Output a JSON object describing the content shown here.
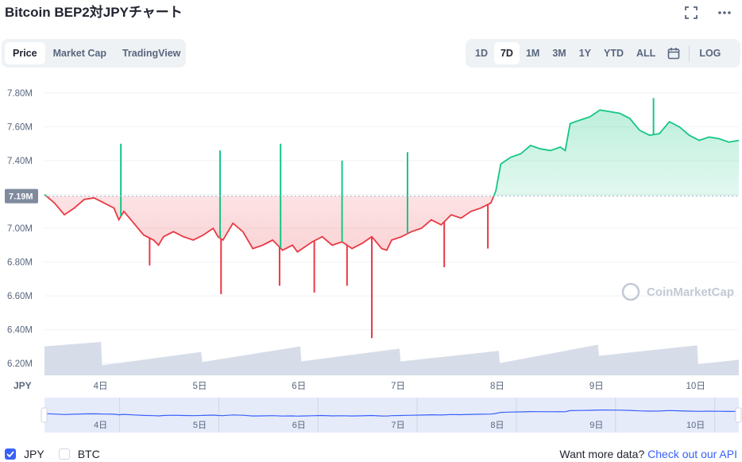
{
  "page": {
    "title": "Bitcoin BEP2対JPYチャート"
  },
  "header_icons": {
    "expand": "expand-icon",
    "more": "more-icon"
  },
  "type_tabs": [
    {
      "label": "Price",
      "active": true
    },
    {
      "label": "Market Cap",
      "active": false
    },
    {
      "label": "TradingView",
      "active": false
    }
  ],
  "range_tabs": [
    {
      "label": "1D",
      "active": false
    },
    {
      "label": "7D",
      "active": true
    },
    {
      "label": "1M",
      "active": false
    },
    {
      "label": "3M",
      "active": false
    },
    {
      "label": "1Y",
      "active": false
    },
    {
      "label": "YTD",
      "active": false
    },
    {
      "label": "ALL",
      "active": false
    }
  ],
  "calendar_icon": "calendar-icon",
  "log_label": "LOG",
  "footer": {
    "currencies": [
      {
        "label": "JPY",
        "checked": true
      },
      {
        "label": "BTC",
        "checked": false
      }
    ],
    "more_text": "Want more data?",
    "api_link": "Check out our API"
  },
  "colors": {
    "up": "#16c784",
    "down": "#ea3943",
    "volume": "#cfd6e4",
    "navigator_line": "#3861fb",
    "accent": "#3861fb"
  },
  "chart_data": {
    "type": "line",
    "currency_label": "JPY",
    "y_ticks": [
      "7.80M",
      "7.60M",
      "7.40M",
      "7.20M",
      "7.00M",
      "6.80M",
      "6.60M",
      "6.40M",
      "6.20M"
    ],
    "y_tick_values": [
      7.8,
      7.6,
      7.4,
      7.2,
      7.0,
      6.8,
      6.6,
      6.4,
      6.2
    ],
    "ylim": [
      6.13,
      7.88
    ],
    "y_unit": "M JPY",
    "x_ticks": [
      "4日",
      "5日",
      "6日",
      "7日",
      "8日",
      "9日",
      "10日"
    ],
    "x_tick_values": [
      0.565,
      1.565,
      2.565,
      3.565,
      4.565,
      5.565,
      6.565
    ],
    "xlim": [
      0,
      7
    ],
    "baseline": 7.19,
    "baseline_label": "7.19M",
    "watermark": "CoinMarketCap",
    "grid": true,
    "series": [
      {
        "x": [
          0,
          0.1,
          0.2,
          0.3,
          0.4,
          0.5,
          0.6,
          0.7,
          0.75,
          0.8,
          0.9,
          1.0,
          1.1,
          1.15,
          1.2,
          1.3,
          1.4,
          1.5,
          1.6,
          1.7,
          1.75,
          1.8,
          1.9,
          2.0,
          2.1,
          2.2,
          2.3,
          2.4,
          2.5,
          2.55,
          2.6,
          2.7,
          2.8,
          2.9,
          3.0,
          3.1,
          3.2,
          3.3,
          3.4,
          3.45,
          3.5,
          3.6,
          3.7,
          3.8,
          3.9,
          4.0,
          4.1,
          4.2,
          4.3,
          4.4,
          4.5,
          4.55,
          4.6,
          4.7,
          4.8,
          4.9,
          5.0,
          5.1,
          5.2,
          5.25,
          5.3,
          5.4,
          5.5,
          5.6,
          5.7,
          5.8,
          5.9,
          6.0,
          6.1,
          6.2,
          6.3,
          6.4,
          6.5,
          6.6,
          6.7,
          6.8,
          6.9,
          7.0
        ],
        "y": [
          7.2,
          7.15,
          7.08,
          7.12,
          7.17,
          7.18,
          7.15,
          7.12,
          7.05,
          7.1,
          7.03,
          6.96,
          6.93,
          6.9,
          6.95,
          6.98,
          6.95,
          6.93,
          6.96,
          7.0,
          6.95,
          6.93,
          7.03,
          6.98,
          6.88,
          6.9,
          6.93,
          6.87,
          6.9,
          6.86,
          6.88,
          6.92,
          6.95,
          6.9,
          6.92,
          6.88,
          6.91,
          6.95,
          6.88,
          6.87,
          6.93,
          6.95,
          6.98,
          7.0,
          7.05,
          7.02,
          7.08,
          7.06,
          7.1,
          7.12,
          7.15,
          7.22,
          7.38,
          7.42,
          7.44,
          7.49,
          7.47,
          7.46,
          7.48,
          7.46,
          7.62,
          7.64,
          7.66,
          7.7,
          7.69,
          7.68,
          7.65,
          7.58,
          7.55,
          7.56,
          7.63,
          7.6,
          7.55,
          7.52,
          7.54,
          7.53,
          7.51,
          7.52
        ]
      }
    ],
    "spikes": [
      {
        "x": 0.77,
        "y": 7.5
      },
      {
        "x": 1.06,
        "y": 6.78
      },
      {
        "x": 1.77,
        "y": 7.46
      },
      {
        "x": 1.78,
        "y": 6.61
      },
      {
        "x": 2.38,
        "y": 7.5
      },
      {
        "x": 2.37,
        "y": 6.66
      },
      {
        "x": 2.72,
        "y": 6.62
      },
      {
        "x": 3.0,
        "y": 7.4
      },
      {
        "x": 3.05,
        "y": 6.66
      },
      {
        "x": 3.3,
        "y": 6.35
      },
      {
        "x": 3.66,
        "y": 7.45
      },
      {
        "x": 4.03,
        "y": 6.77
      },
      {
        "x": 4.47,
        "y": 6.88
      },
      {
        "x": 6.14,
        "y": 7.77
      }
    ],
    "volume": [
      {
        "x": 0.0,
        "y": 0.52
      },
      {
        "x": 0.57,
        "y": 0.6
      },
      {
        "x": 0.58,
        "y": 0.18
      },
      {
        "x": 1.58,
        "y": 0.42
      },
      {
        "x": 1.59,
        "y": 0.24
      },
      {
        "x": 2.58,
        "y": 0.52
      },
      {
        "x": 2.59,
        "y": 0.25
      },
      {
        "x": 3.58,
        "y": 0.48
      },
      {
        "x": 3.59,
        "y": 0.25
      },
      {
        "x": 4.58,
        "y": 0.44
      },
      {
        "x": 4.59,
        "y": 0.22
      },
      {
        "x": 5.58,
        "y": 0.55
      },
      {
        "x": 5.59,
        "y": 0.35
      },
      {
        "x": 6.58,
        "y": 0.54
      },
      {
        "x": 6.59,
        "y": 0.2
      },
      {
        "x": 7.0,
        "y": 0.28
      }
    ]
  }
}
